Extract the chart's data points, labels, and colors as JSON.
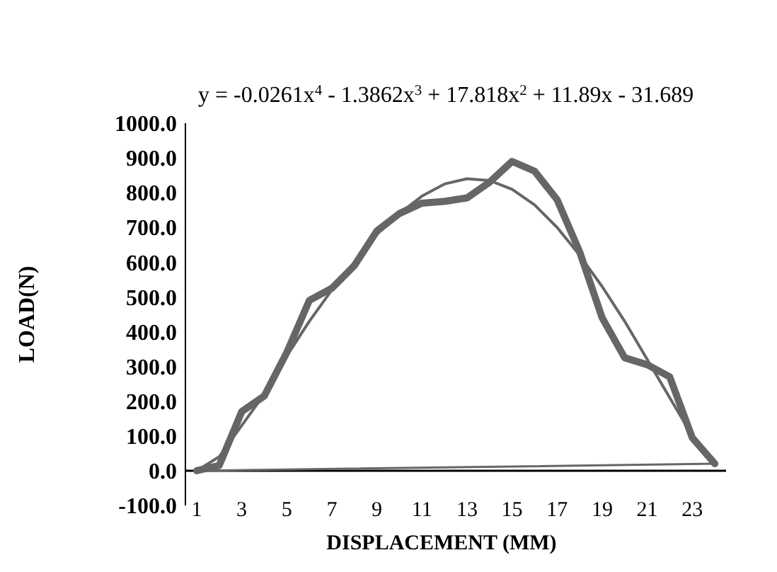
{
  "chart_data": {
    "type": "line",
    "xlabel": "DISPLACEMENT (MM)",
    "ylabel": "LOAD(N)",
    "x": [
      1,
      2,
      3,
      4,
      5,
      6,
      7,
      8,
      9,
      10,
      11,
      12,
      13,
      14,
      15,
      16,
      17,
      18,
      19,
      20,
      21,
      22,
      23,
      24
    ],
    "series": [
      {
        "color": "#666666",
        "values": [
          0,
          15,
          170,
          215,
          340,
          490,
          525,
          590,
          690,
          740,
          770,
          775,
          785,
          830,
          890,
          862,
          780,
          630,
          440,
          325,
          305,
          270,
          95,
          20
        ]
      },
      {
        "color": "#666666",
        "x": [
          1,
          2,
          3,
          4,
          5,
          6,
          7,
          8,
          9,
          10,
          11,
          12,
          13,
          14,
          15,
          16,
          17,
          18,
          19,
          20,
          21,
          22,
          23,
          24
        ],
        "values": [
          0,
          40,
          130,
          220,
          330,
          430,
          520,
          600,
          680,
          740,
          790,
          825,
          840,
          835,
          810,
          765,
          700,
          620,
          530,
          430,
          320,
          210,
          100,
          20
        ]
      },
      {
        "color": "#666666",
        "x": [
          1,
          24
        ],
        "values": [
          0,
          20
        ]
      }
    ],
    "annotations": [
      "y = -0.0261x$^{4}$ - 1.3862x$^{3}$ + 17.818x$^{2}$ + 11.89x - 31.689"
    ],
    "xlim": [
      0.5,
      24.5
    ],
    "xticks": [
      1,
      3,
      5,
      7,
      9,
      11,
      13,
      15,
      17,
      19,
      21,
      23
    ],
    "ylim": [
      -100,
      1000
    ],
    "yticks": [
      {
        "value": -100,
        "label": "-100.0"
      },
      {
        "value": 0,
        "label": "0.0"
      },
      {
        "value": 100,
        "label": "100.0"
      },
      {
        "value": 200,
        "label": "200.0"
      },
      {
        "value": 300,
        "label": "300.0"
      },
      {
        "value": 400,
        "label": "400.0"
      },
      {
        "value": 500,
        "label": "500.0"
      },
      {
        "value": 600,
        "label": "600.0"
      },
      {
        "value": 700,
        "label": "700.0"
      },
      {
        "value": 800,
        "label": "800.0"
      },
      {
        "value": 900,
        "label": "900.0"
      },
      {
        "value": 1000,
        "label": "1000.0"
      }
    ],
    "grid": false,
    "marker": "none",
    "line_style": "solid"
  }
}
